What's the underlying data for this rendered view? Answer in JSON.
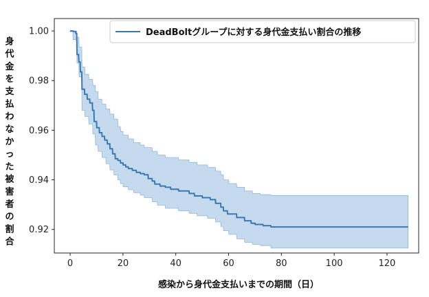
{
  "chart_data": {
    "type": "line",
    "legend": "upper-right",
    "legend_label": "DeadBoltグループに対する身代金支払い割合の推移",
    "xlabel": "感染から身代金支払いまでの期間（日）",
    "ylabel": "身代金を支払わなかった被害者の割合",
    "xlim": [
      -6,
      132
    ],
    "ylim": [
      0.9105,
      1.005
    ],
    "xticks": [
      0,
      20,
      40,
      60,
      80,
      100,
      120
    ],
    "yticks": [
      1.0,
      0.98,
      0.96,
      0.94,
      0.92
    ],
    "ytick_labels": [
      "1.00",
      "0.98",
      "0.96",
      "0.94",
      "0.92"
    ],
    "colors": {
      "line": "#3a78b4",
      "band_fill": "#bcd4ea",
      "band_edge": "#8fb6dc"
    },
    "series": [
      {
        "points": [
          [
            0,
            1.0
          ],
          [
            1,
            1.0
          ],
          [
            1.2,
            0.9998
          ],
          [
            2,
            0.9998
          ],
          [
            2.2,
            0.999
          ],
          [
            2.5,
            0.999
          ],
          [
            2.6,
            0.9905
          ],
          [
            3.2,
            0.9905
          ],
          [
            3.3,
            0.9875
          ],
          [
            3.8,
            0.9875
          ],
          [
            3.9,
            0.9835
          ],
          [
            4.4,
            0.9835
          ],
          [
            4.5,
            0.9765
          ],
          [
            5.4,
            0.9765
          ],
          [
            5.5,
            0.9745
          ],
          [
            6.4,
            0.9745
          ],
          [
            6.5,
            0.9725
          ],
          [
            7.4,
            0.9725
          ],
          [
            7.5,
            0.971
          ],
          [
            8.4,
            0.971
          ],
          [
            8.5,
            0.968
          ],
          [
            9,
            0.968
          ],
          [
            9.1,
            0.9635
          ],
          [
            10,
            0.9635
          ],
          [
            10.1,
            0.961
          ],
          [
            11,
            0.961
          ],
          [
            11.1,
            0.959
          ],
          [
            12,
            0.959
          ],
          [
            12.1,
            0.9575
          ],
          [
            13,
            0.9575
          ],
          [
            13.1,
            0.956
          ],
          [
            14,
            0.956
          ],
          [
            14.1,
            0.9545
          ],
          [
            15,
            0.9545
          ],
          [
            15.1,
            0.9525
          ],
          [
            16,
            0.9525
          ],
          [
            16.1,
            0.9505
          ],
          [
            17,
            0.9505
          ],
          [
            17.1,
            0.9485
          ],
          [
            18,
            0.9485
          ],
          [
            18.1,
            0.9478
          ],
          [
            19,
            0.9478
          ],
          [
            19.1,
            0.9468
          ],
          [
            20,
            0.9468
          ],
          [
            20.1,
            0.946
          ],
          [
            21,
            0.946
          ],
          [
            21.1,
            0.9452
          ],
          [
            22,
            0.9452
          ],
          [
            22.1,
            0.9445
          ],
          [
            23.5,
            0.9445
          ],
          [
            23.6,
            0.9438
          ],
          [
            25,
            0.9438
          ],
          [
            25.1,
            0.943
          ],
          [
            26.5,
            0.943
          ],
          [
            26.6,
            0.9425
          ],
          [
            28,
            0.9425
          ],
          [
            28.1,
            0.942
          ],
          [
            29.5,
            0.942
          ],
          [
            29.6,
            0.9405
          ],
          [
            31,
            0.9405
          ],
          [
            31.1,
            0.9395
          ],
          [
            32,
            0.9395
          ],
          [
            32.1,
            0.9383
          ],
          [
            34,
            0.9383
          ],
          [
            34.1,
            0.9375
          ],
          [
            36,
            0.9375
          ],
          [
            36.1,
            0.937
          ],
          [
            38,
            0.937
          ],
          [
            38.1,
            0.9362
          ],
          [
            41,
            0.9362
          ],
          [
            41.1,
            0.9355
          ],
          [
            45,
            0.9355
          ],
          [
            45.1,
            0.9345
          ],
          [
            47,
            0.9345
          ],
          [
            47.1,
            0.9335
          ],
          [
            50,
            0.9335
          ],
          [
            50.1,
            0.9328
          ],
          [
            53,
            0.9328
          ],
          [
            53.1,
            0.932
          ],
          [
            55,
            0.932
          ],
          [
            55.1,
            0.9305
          ],
          [
            57,
            0.9305
          ],
          [
            57.1,
            0.929
          ],
          [
            58,
            0.929
          ],
          [
            58.1,
            0.9275
          ],
          [
            59.5,
            0.9275
          ],
          [
            59.6,
            0.9262
          ],
          [
            63,
            0.9262
          ],
          [
            63.1,
            0.9248
          ],
          [
            66,
            0.9248
          ],
          [
            66.1,
            0.9235
          ],
          [
            68.5,
            0.9235
          ],
          [
            68.6,
            0.9225
          ],
          [
            70,
            0.9225
          ],
          [
            70.1,
            0.922
          ],
          [
            73,
            0.922
          ],
          [
            73.1,
            0.9215
          ],
          [
            76,
            0.9215
          ],
          [
            76.1,
            0.921
          ],
          [
            128,
            0.921
          ]
        ]
      }
    ],
    "band": {
      "upper": [
        [
          0,
          1.0
        ],
        [
          2.5,
          1.0
        ],
        [
          2.6,
          0.9975
        ],
        [
          3.3,
          0.9975
        ],
        [
          3.4,
          0.9935
        ],
        [
          4.4,
          0.9935
        ],
        [
          4.5,
          0.9855
        ],
        [
          5.5,
          0.9855
        ],
        [
          5.6,
          0.9825
        ],
        [
          7,
          0.9825
        ],
        [
          7.1,
          0.9805
        ],
        [
          8.5,
          0.9805
        ],
        [
          8.6,
          0.978
        ],
        [
          9.5,
          0.978
        ],
        [
          9.6,
          0.9755
        ],
        [
          10.5,
          0.9755
        ],
        [
          10.6,
          0.9725
        ],
        [
          12,
          0.9725
        ],
        [
          12.1,
          0.9705
        ],
        [
          13.5,
          0.9705
        ],
        [
          13.6,
          0.9685
        ],
        [
          15,
          0.9685
        ],
        [
          15.1,
          0.9665
        ],
        [
          16.5,
          0.9665
        ],
        [
          16.6,
          0.9645
        ],
        [
          18,
          0.9645
        ],
        [
          18.1,
          0.9615
        ],
        [
          19,
          0.9615
        ],
        [
          19.1,
          0.9595
        ],
        [
          20,
          0.9595
        ],
        [
          20.1,
          0.958
        ],
        [
          22,
          0.958
        ],
        [
          22.1,
          0.9565
        ],
        [
          24,
          0.9565
        ],
        [
          24.1,
          0.955
        ],
        [
          26.5,
          0.955
        ],
        [
          26.6,
          0.954
        ],
        [
          28,
          0.954
        ],
        [
          28.1,
          0.953
        ],
        [
          31,
          0.953
        ],
        [
          31.1,
          0.9515
        ],
        [
          33,
          0.9515
        ],
        [
          33.1,
          0.95
        ],
        [
          36,
          0.95
        ],
        [
          36.1,
          0.949
        ],
        [
          41,
          0.949
        ],
        [
          41.1,
          0.948
        ],
        [
          45,
          0.948
        ],
        [
          45.1,
          0.947
        ],
        [
          48,
          0.947
        ],
        [
          48.1,
          0.946
        ],
        [
          52,
          0.946
        ],
        [
          52.1,
          0.945
        ],
        [
          55,
          0.945
        ],
        [
          55.1,
          0.9435
        ],
        [
          57,
          0.9435
        ],
        [
          57.1,
          0.942
        ],
        [
          58,
          0.942
        ],
        [
          58.1,
          0.94
        ],
        [
          60,
          0.94
        ],
        [
          60.1,
          0.9385
        ],
        [
          63,
          0.9385
        ],
        [
          63.1,
          0.937
        ],
        [
          66,
          0.937
        ],
        [
          66.1,
          0.9355
        ],
        [
          69,
          0.9355
        ],
        [
          69.1,
          0.9345
        ],
        [
          72,
          0.9345
        ],
        [
          72.1,
          0.934
        ],
        [
          76,
          0.934
        ],
        [
          76.1,
          0.9337
        ],
        [
          128,
          0.9337
        ]
      ],
      "lower": [
        [
          0,
          0.9998
        ],
        [
          1,
          0.9998
        ],
        [
          1.1,
          0.9965
        ],
        [
          2.5,
          0.9965
        ],
        [
          2.6,
          0.987
        ],
        [
          3.3,
          0.987
        ],
        [
          3.4,
          0.9815
        ],
        [
          4.4,
          0.9815
        ],
        [
          4.5,
          0.968
        ],
        [
          5.5,
          0.968
        ],
        [
          5.6,
          0.9655
        ],
        [
          7,
          0.9655
        ],
        [
          7.1,
          0.9625
        ],
        [
          8.5,
          0.9625
        ],
        [
          8.6,
          0.9585
        ],
        [
          9.5,
          0.9585
        ],
        [
          9.6,
          0.954
        ],
        [
          10.5,
          0.954
        ],
        [
          10.6,
          0.9515
        ],
        [
          12,
          0.9515
        ],
        [
          12.1,
          0.949
        ],
        [
          13.5,
          0.949
        ],
        [
          13.6,
          0.9465
        ],
        [
          15,
          0.9465
        ],
        [
          15.1,
          0.944
        ],
        [
          16.5,
          0.944
        ],
        [
          16.6,
          0.942
        ],
        [
          18,
          0.942
        ],
        [
          18.1,
          0.94
        ],
        [
          19,
          0.94
        ],
        [
          19.1,
          0.9385
        ],
        [
          20,
          0.9385
        ],
        [
          20.1,
          0.9372
        ],
        [
          22,
          0.9372
        ],
        [
          22.1,
          0.936
        ],
        [
          24,
          0.936
        ],
        [
          24.1,
          0.9348
        ],
        [
          26.5,
          0.9348
        ],
        [
          26.6,
          0.9338
        ],
        [
          28,
          0.9338
        ],
        [
          28.1,
          0.9328
        ],
        [
          31,
          0.9328
        ],
        [
          31.1,
          0.9312
        ],
        [
          33,
          0.9312
        ],
        [
          33.1,
          0.9298
        ],
        [
          36,
          0.9298
        ],
        [
          36.1,
          0.9285
        ],
        [
          41,
          0.9285
        ],
        [
          41.1,
          0.9275
        ],
        [
          45,
          0.9275
        ],
        [
          45.1,
          0.9265
        ],
        [
          48,
          0.9265
        ],
        [
          48.1,
          0.9255
        ],
        [
          52,
          0.9255
        ],
        [
          52.1,
          0.9245
        ],
        [
          55,
          0.9245
        ],
        [
          55.1,
          0.923
        ],
        [
          57,
          0.923
        ],
        [
          57.1,
          0.9212
        ],
        [
          58,
          0.9212
        ],
        [
          58.1,
          0.9195
        ],
        [
          60,
          0.9195
        ],
        [
          60.1,
          0.918
        ],
        [
          63,
          0.918
        ],
        [
          63.1,
          0.9162
        ],
        [
          66,
          0.9162
        ],
        [
          66.1,
          0.9148
        ],
        [
          69,
          0.9148
        ],
        [
          69.1,
          0.914
        ],
        [
          72,
          0.914
        ],
        [
          72.1,
          0.9135
        ],
        [
          76,
          0.9135
        ],
        [
          76.1,
          0.9125
        ],
        [
          128,
          0.9125
        ]
      ]
    }
  }
}
